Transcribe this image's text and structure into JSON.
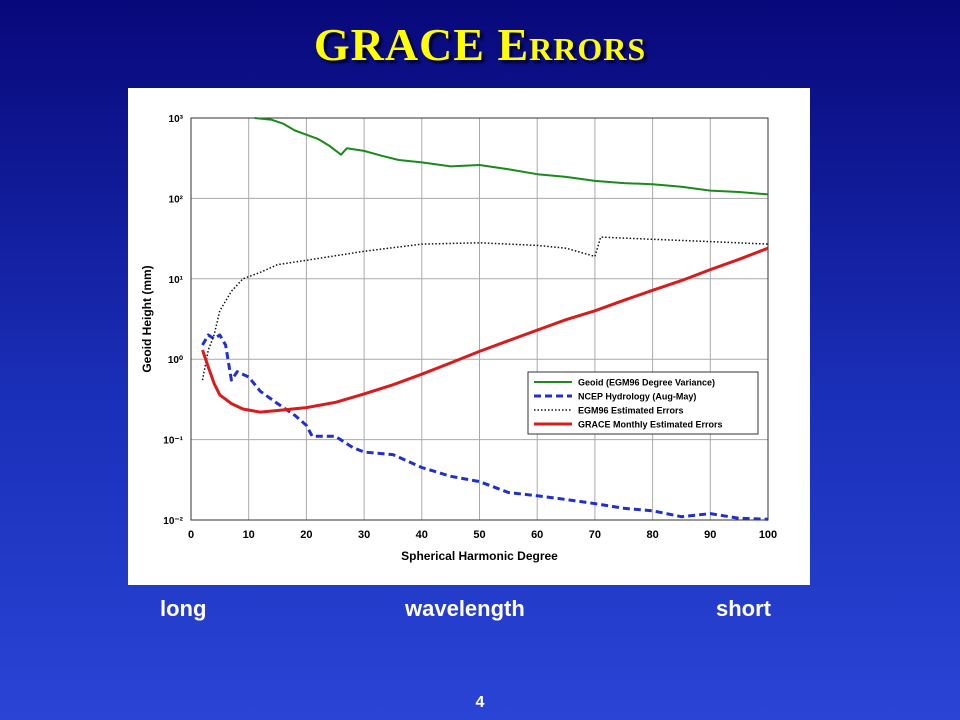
{
  "chart_data": {
    "type": "line",
    "title": "GRACE Errors",
    "x_label": "Spherical Harmonic Degree",
    "y_label": "Geoid Height (mm)",
    "y_scale": "log",
    "grid": true,
    "legend_position": "lower-right",
    "xlim": [
      0,
      100
    ],
    "xticks": [
      0,
      10,
      20,
      30,
      40,
      50,
      60,
      70,
      80,
      90,
      100
    ],
    "ylim": [
      0.01,
      1000
    ],
    "yticks": [
      {
        "value": 0.01,
        "label": "10⁻²"
      },
      {
        "value": 0.1,
        "label": "10⁻¹"
      },
      {
        "value": 1,
        "label": "10⁰"
      },
      {
        "value": 10,
        "label": "10¹"
      },
      {
        "value": 100,
        "label": "10²"
      },
      {
        "value": 1000,
        "label": "10³"
      }
    ],
    "series": [
      {
        "name": "Geoid (EGM96 Degree Variance)",
        "color": "#1a8a1a",
        "style": "solid",
        "x": [
          11,
          14,
          16,
          18,
          20,
          22,
          24,
          26,
          27,
          30,
          33,
          36,
          40,
          45,
          50,
          55,
          60,
          65,
          70,
          75,
          80,
          85,
          90,
          95,
          100
        ],
        "values": [
          1000,
          950,
          850,
          700,
          620,
          550,
          450,
          350,
          420,
          390,
          340,
          300,
          280,
          250,
          260,
          230,
          200,
          185,
          165,
          155,
          150,
          140,
          125,
          120,
          112
        ]
      },
      {
        "name": "NCEP Hydrology (Aug-May)",
        "color": "#1f2fd0",
        "style": "dashed",
        "x": [
          2,
          3,
          4,
          5,
          6,
          7,
          8,
          10,
          12,
          15,
          18,
          20,
          21,
          25,
          28,
          30,
          35,
          40,
          45,
          50,
          55,
          60,
          65,
          70,
          75,
          80,
          85,
          90,
          95,
          100
        ],
        "values": [
          1.5,
          2.0,
          1.8,
          2.0,
          1.5,
          0.55,
          0.7,
          0.6,
          0.4,
          0.28,
          0.2,
          0.15,
          0.11,
          0.11,
          0.08,
          0.07,
          0.065,
          0.045,
          0.035,
          0.03,
          0.022,
          0.02,
          0.018,
          0.016,
          0.014,
          0.013,
          0.011,
          0.012,
          0.0105,
          0.0102
        ]
      },
      {
        "name": "EGM96 Estimated Errors",
        "color": "#111111",
        "style": "dotted",
        "x": [
          2,
          3,
          4,
          5,
          7,
          9,
          12,
          15,
          20,
          30,
          40,
          50,
          60,
          65,
          70,
          71,
          80,
          90,
          100
        ],
        "values": [
          0.55,
          1.3,
          2.0,
          4.0,
          7,
          10,
          12,
          15,
          17,
          22,
          27,
          28,
          26,
          24,
          19,
          33,
          31,
          29,
          27
        ]
      },
      {
        "name": "GRACE Monthly Estimated Errors",
        "color": "#d81c1c",
        "style": "solid",
        "x": [
          2,
          3,
          4,
          5,
          7,
          9,
          12,
          15,
          20,
          25,
          30,
          35,
          40,
          45,
          50,
          55,
          60,
          65,
          70,
          75,
          80,
          85,
          90,
          95,
          100
        ],
        "values": [
          1.3,
          0.8,
          0.5,
          0.36,
          0.28,
          0.24,
          0.22,
          0.23,
          0.25,
          0.29,
          0.37,
          0.48,
          0.65,
          0.9,
          1.25,
          1.7,
          2.3,
          3.1,
          4.0,
          5.4,
          7.2,
          9.5,
          13,
          17.5,
          24
        ]
      }
    ],
    "annotations": [
      "long",
      "wavelength",
      "short"
    ]
  },
  "slide_number": "4"
}
